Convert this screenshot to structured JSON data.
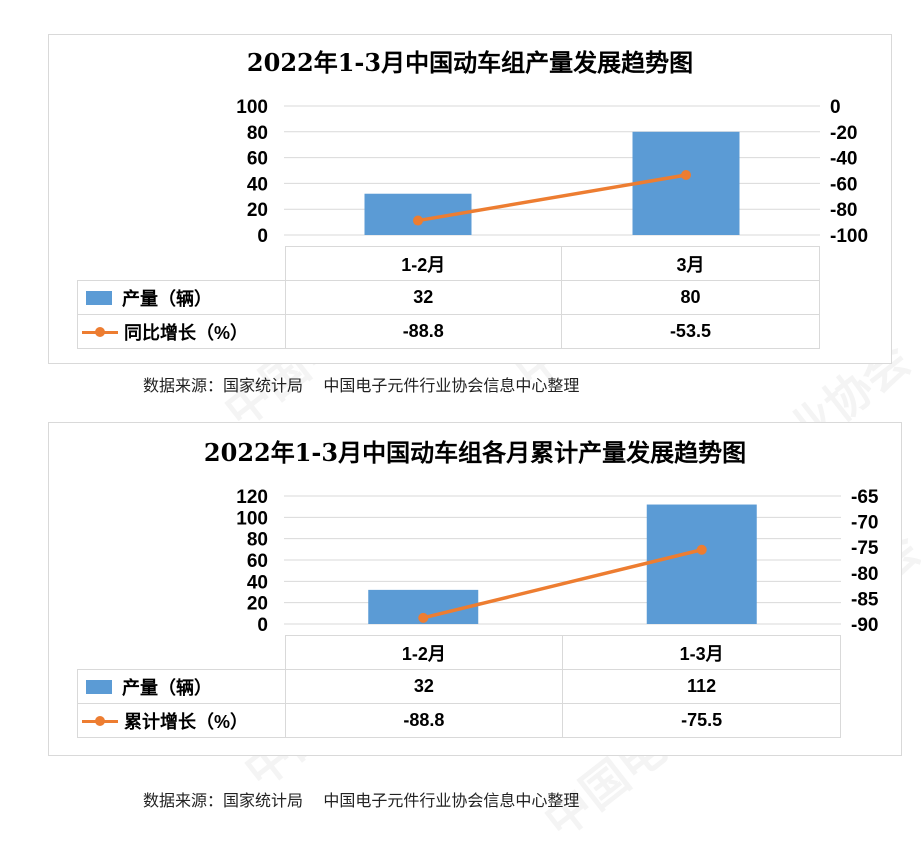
{
  "watermark_text": "中国电子元件行业协会",
  "chart_data": [
    {
      "type": "bar",
      "title": "2022年1-3月中国动车组产量发展趋势图",
      "categories": [
        "1-2月",
        "3月"
      ],
      "series": [
        {
          "name": "产量（辆）",
          "type": "bar",
          "axis": "left",
          "values": [
            32,
            80
          ],
          "value_labels": [
            "32",
            "80"
          ],
          "color": "#5b9bd5"
        },
        {
          "name": "同比增长（%）",
          "type": "line",
          "axis": "right",
          "values": [
            -88.8,
            -53.5
          ],
          "value_labels": [
            "-88.8",
            "-53.5"
          ],
          "color": "#ed7d31"
        }
      ],
      "ylim": [
        0,
        100
      ],
      "y_ticks": [
        0,
        20,
        40,
        60,
        80,
        100
      ],
      "y2lim": [
        -100,
        0
      ],
      "y2_ticks": [
        -100,
        -80,
        -60,
        -40,
        -20,
        0
      ],
      "grid": true,
      "legend": "data-table",
      "source": "数据来源：国家统计局    中国电子元件行业协会信息中心整理"
    },
    {
      "type": "bar",
      "title": "2022年1-3月中国动车组各月累计产量发展趋势图",
      "categories": [
        "1-2月",
        "1-3月"
      ],
      "series": [
        {
          "name": "产量（辆）",
          "type": "bar",
          "axis": "left",
          "values": [
            32,
            112
          ],
          "value_labels": [
            "32",
            "112"
          ],
          "color": "#5b9bd5"
        },
        {
          "name": "累计增长（%）",
          "type": "line",
          "axis": "right",
          "values": [
            -88.8,
            -75.5
          ],
          "value_labels": [
            "-88.8",
            "-75.5"
          ],
          "color": "#ed7d31"
        }
      ],
      "ylim": [
        0,
        120
      ],
      "y_ticks": [
        0,
        20,
        40,
        60,
        80,
        100,
        120
      ],
      "y2lim": [
        -90,
        -65
      ],
      "y2_ticks": [
        -90,
        -85,
        -80,
        -75,
        -70,
        -65
      ],
      "grid": true,
      "legend": "data-table",
      "source": "数据来源：国家统计局    中国电子元件行业协会信息中心整理"
    }
  ]
}
